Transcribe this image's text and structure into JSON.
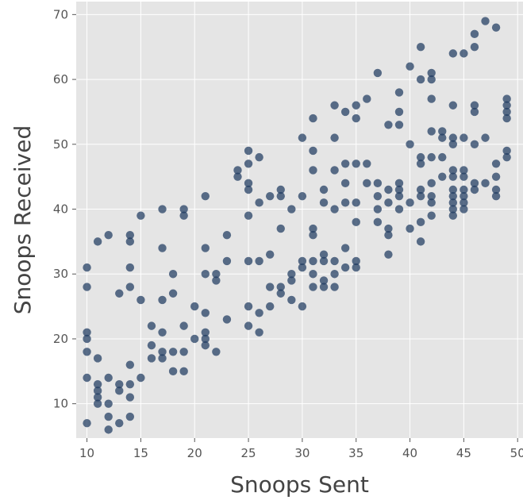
{
  "chart_data": {
    "type": "scatter",
    "title": "",
    "xlabel": "Snoops Sent",
    "ylabel": "Snoops Received",
    "xlim": [
      9.0,
      50.5
    ],
    "ylim": [
      4.7,
      72
    ],
    "xticks": [
      10,
      15,
      20,
      25,
      30,
      35,
      40,
      45,
      50
    ],
    "yticks": [
      10,
      20,
      30,
      40,
      50,
      60,
      70
    ],
    "grid": true,
    "legend": "none",
    "colors": {
      "background": "#e5e5e5",
      "grid": "#ffffff",
      "point": "#1f3a5f"
    },
    "series": [
      {
        "points": [
          [
            10,
            31
          ],
          [
            10,
            28
          ],
          [
            10,
            21
          ],
          [
            10,
            20
          ],
          [
            10,
            18
          ],
          [
            10,
            14
          ],
          [
            10,
            7
          ],
          [
            11,
            35
          ],
          [
            11,
            17
          ],
          [
            11,
            13
          ],
          [
            11,
            12
          ],
          [
            11,
            11
          ],
          [
            11,
            10
          ],
          [
            12,
            36
          ],
          [
            12,
            14
          ],
          [
            12,
            10
          ],
          [
            12,
            8
          ],
          [
            12,
            6
          ],
          [
            13,
            27
          ],
          [
            13,
            13
          ],
          [
            13,
            12
          ],
          [
            13,
            7
          ],
          [
            14,
            36
          ],
          [
            14,
            35
          ],
          [
            14,
            31
          ],
          [
            14,
            28
          ],
          [
            14,
            16
          ],
          [
            14,
            13
          ],
          [
            14,
            11
          ],
          [
            14,
            8
          ],
          [
            15,
            39
          ],
          [
            15,
            26
          ],
          [
            15,
            14
          ],
          [
            16,
            22
          ],
          [
            16,
            19
          ],
          [
            16,
            17
          ],
          [
            17,
            40
          ],
          [
            17,
            34
          ],
          [
            17,
            26
          ],
          [
            17,
            21
          ],
          [
            17,
            18
          ],
          [
            17,
            17
          ],
          [
            18,
            30
          ],
          [
            18,
            27
          ],
          [
            18,
            18
          ],
          [
            18,
            15
          ],
          [
            19,
            40
          ],
          [
            19,
            39
          ],
          [
            19,
            22
          ],
          [
            19,
            18
          ],
          [
            19,
            15
          ],
          [
            20,
            25
          ],
          [
            20,
            20
          ],
          [
            21,
            42
          ],
          [
            21,
            34
          ],
          [
            21,
            30
          ],
          [
            21,
            24
          ],
          [
            21,
            21
          ],
          [
            21,
            20
          ],
          [
            21,
            19
          ],
          [
            22,
            30
          ],
          [
            22,
            29
          ],
          [
            22,
            18
          ],
          [
            23,
            36
          ],
          [
            23,
            32
          ],
          [
            23,
            23
          ],
          [
            24,
            46
          ],
          [
            24,
            45
          ],
          [
            25,
            49
          ],
          [
            25,
            47
          ],
          [
            25,
            44
          ],
          [
            25,
            43
          ],
          [
            25,
            39
          ],
          [
            25,
            32
          ],
          [
            25,
            25
          ],
          [
            25,
            22
          ],
          [
            26,
            48
          ],
          [
            26,
            41
          ],
          [
            26,
            32
          ],
          [
            26,
            24
          ],
          [
            26,
            21
          ],
          [
            27,
            42
          ],
          [
            27,
            33
          ],
          [
            27,
            28
          ],
          [
            27,
            25
          ],
          [
            28,
            43
          ],
          [
            28,
            42
          ],
          [
            28,
            37
          ],
          [
            28,
            28
          ],
          [
            28,
            27
          ],
          [
            29,
            40
          ],
          [
            29,
            30
          ],
          [
            29,
            29
          ],
          [
            29,
            26
          ],
          [
            30,
            51
          ],
          [
            30,
            42
          ],
          [
            30,
            32
          ],
          [
            30,
            31
          ],
          [
            30,
            25
          ],
          [
            31,
            54
          ],
          [
            31,
            49
          ],
          [
            31,
            46
          ],
          [
            31,
            37
          ],
          [
            31,
            36
          ],
          [
            31,
            32
          ],
          [
            31,
            30
          ],
          [
            31,
            28
          ],
          [
            32,
            43
          ],
          [
            32,
            41
          ],
          [
            32,
            33
          ],
          [
            32,
            32
          ],
          [
            32,
            29
          ],
          [
            32,
            28
          ],
          [
            33,
            56
          ],
          [
            33,
            51
          ],
          [
            33,
            46
          ],
          [
            33,
            40
          ],
          [
            33,
            32
          ],
          [
            33,
            30
          ],
          [
            33,
            28
          ],
          [
            34,
            55
          ],
          [
            34,
            47
          ],
          [
            34,
            44
          ],
          [
            34,
            41
          ],
          [
            34,
            34
          ],
          [
            34,
            31
          ],
          [
            35,
            56
          ],
          [
            35,
            54
          ],
          [
            35,
            47
          ],
          [
            35,
            41
          ],
          [
            35,
            38
          ],
          [
            35,
            32
          ],
          [
            35,
            31
          ],
          [
            36,
            57
          ],
          [
            36,
            47
          ],
          [
            36,
            44
          ],
          [
            37,
            61
          ],
          [
            37,
            44
          ],
          [
            37,
            42
          ],
          [
            37,
            40
          ],
          [
            37,
            38
          ],
          [
            38,
            53
          ],
          [
            38,
            43
          ],
          [
            38,
            41
          ],
          [
            38,
            37
          ],
          [
            38,
            36
          ],
          [
            38,
            33
          ],
          [
            39,
            58
          ],
          [
            39,
            55
          ],
          [
            39,
            53
          ],
          [
            39,
            44
          ],
          [
            39,
            43
          ],
          [
            39,
            42
          ],
          [
            39,
            40
          ],
          [
            40,
            62
          ],
          [
            40,
            50
          ],
          [
            40,
            41
          ],
          [
            40,
            37
          ],
          [
            41,
            65
          ],
          [
            41,
            60
          ],
          [
            41,
            48
          ],
          [
            41,
            47
          ],
          [
            41,
            43
          ],
          [
            41,
            42
          ],
          [
            41,
            38
          ],
          [
            41,
            35
          ],
          [
            42,
            61
          ],
          [
            42,
            60
          ],
          [
            42,
            57
          ],
          [
            42,
            52
          ],
          [
            42,
            48
          ],
          [
            42,
            44
          ],
          [
            42,
            42
          ],
          [
            42,
            41
          ],
          [
            42,
            39
          ],
          [
            43,
            52
          ],
          [
            43,
            51
          ],
          [
            43,
            48
          ],
          [
            43,
            45
          ],
          [
            44,
            64
          ],
          [
            44,
            56
          ],
          [
            44,
            51
          ],
          [
            44,
            50
          ],
          [
            44,
            46
          ],
          [
            44,
            45
          ],
          [
            44,
            43
          ],
          [
            44,
            42
          ],
          [
            44,
            41
          ],
          [
            44,
            40
          ],
          [
            44,
            39
          ],
          [
            45,
            64
          ],
          [
            45,
            51
          ],
          [
            45,
            46
          ],
          [
            45,
            45
          ],
          [
            45,
            43
          ],
          [
            45,
            42
          ],
          [
            45,
            41
          ],
          [
            45,
            40
          ],
          [
            46,
            67
          ],
          [
            46,
            65
          ],
          [
            46,
            56
          ],
          [
            46,
            55
          ],
          [
            46,
            50
          ],
          [
            46,
            44
          ],
          [
            46,
            43
          ],
          [
            47,
            69
          ],
          [
            47,
            51
          ],
          [
            47,
            44
          ],
          [
            48,
            68
          ],
          [
            48,
            47
          ],
          [
            48,
            45
          ],
          [
            48,
            43
          ],
          [
            48,
            42
          ],
          [
            49,
            57
          ],
          [
            49,
            56
          ],
          [
            49,
            55
          ],
          [
            49,
            54
          ],
          [
            49,
            49
          ],
          [
            49,
            48
          ]
        ]
      }
    ]
  }
}
